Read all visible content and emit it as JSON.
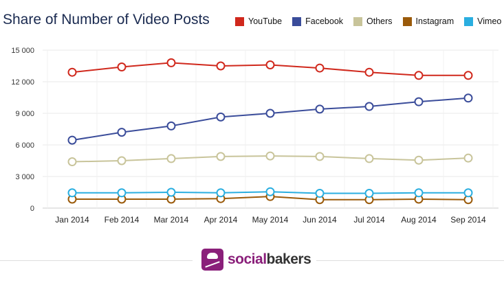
{
  "chart_data": {
    "type": "line",
    "title": "Share of Number of Video Posts",
    "categories": [
      "Jan 2014",
      "Feb 2014",
      "Mar 2014",
      "Apr 2014",
      "May 2014",
      "Jun 2014",
      "Jul 2014",
      "Aug 2014",
      "Sep 2014"
    ],
    "yticks": [
      "0",
      "3 000",
      "6 000",
      "9 000",
      "12 000",
      "15 000"
    ],
    "ylim": [
      0,
      15000
    ],
    "grid": true,
    "legend_placement": "top-right",
    "series": [
      {
        "name": "YouTube",
        "color": "#d0281c",
        "values": [
          12900,
          13400,
          13800,
          13500,
          13600,
          13300,
          12900,
          12600,
          12600
        ]
      },
      {
        "name": "Facebook",
        "color": "#3a4c9a",
        "values": [
          6450,
          7200,
          7800,
          8650,
          9000,
          9400,
          9650,
          10100,
          10450
        ]
      },
      {
        "name": "Others",
        "color": "#c8c49a",
        "values": [
          4400,
          4500,
          4700,
          4900,
          4950,
          4900,
          4700,
          4550,
          4750
        ]
      },
      {
        "name": "Instagram",
        "color": "#9a5a0a",
        "values": [
          850,
          850,
          850,
          900,
          1100,
          800,
          800,
          850,
          800
        ]
      },
      {
        "name": "Vimeo",
        "color": "#2aaee0",
        "values": [
          1450,
          1450,
          1500,
          1450,
          1550,
          1400,
          1400,
          1450,
          1450
        ]
      }
    ]
  },
  "footer": {
    "brand_part1": "social",
    "brand_part2": "bakers"
  }
}
